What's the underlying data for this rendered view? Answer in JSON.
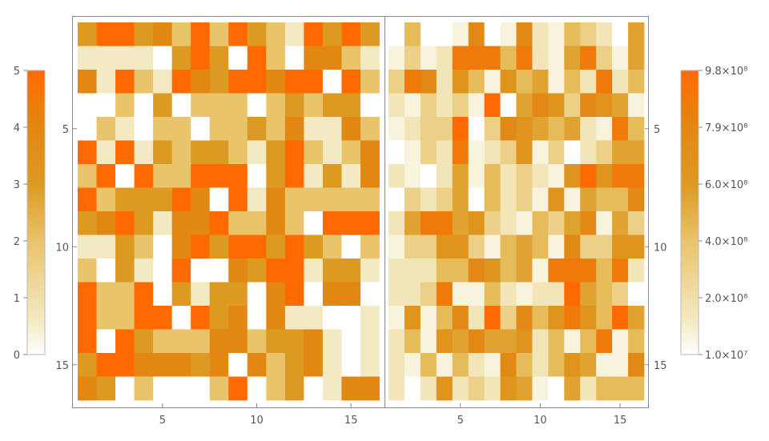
{
  "chart_data": {
    "type": "heatmap",
    "panels": [
      {
        "name": "left",
        "rows": 16,
        "cols": 16,
        "values": [
          [
            3,
            5,
            5,
            3,
            4,
            2,
            5,
            2,
            5,
            3,
            2,
            1,
            5,
            3,
            5,
            3
          ],
          [
            1,
            1,
            1,
            1,
            0,
            3,
            5,
            3,
            0,
            5,
            2,
            0,
            4,
            4,
            2,
            1
          ],
          [
            4,
            1,
            5,
            2,
            1,
            5,
            4,
            3,
            5,
            5,
            4,
            5,
            5,
            0,
            5,
            2
          ],
          [
            0,
            0,
            2,
            0,
            3,
            0,
            2,
            2,
            2,
            0,
            2,
            3,
            2,
            3,
            3,
            0
          ],
          [
            0,
            2,
            1,
            0,
            2,
            2,
            0,
            2,
            2,
            3,
            2,
            4,
            1,
            1,
            4,
            2
          ],
          [
            5,
            1,
            5,
            1,
            3,
            2,
            3,
            3,
            2,
            1,
            3,
            5,
            2,
            1,
            2,
            4
          ],
          [
            2,
            5,
            0,
            5,
            2,
            2,
            5,
            5,
            5,
            0,
            3,
            5,
            1,
            3,
            1,
            4
          ],
          [
            5,
            2,
            3,
            3,
            3,
            5,
            4,
            0,
            5,
            1,
            4,
            2,
            2,
            2,
            2,
            2
          ],
          [
            3,
            4,
            5,
            3,
            1,
            4,
            4,
            5,
            2,
            2,
            4,
            2,
            0,
            5,
            5,
            5
          ],
          [
            1,
            1,
            3,
            2,
            0,
            4,
            5,
            3,
            5,
            5,
            3,
            5,
            3,
            2,
            0,
            2
          ],
          [
            2,
            0,
            3,
            1,
            0,
            5,
            0,
            0,
            4,
            3,
            5,
            5,
            1,
            3,
            3,
            1
          ],
          [
            5,
            2,
            2,
            5,
            0,
            3,
            1,
            3,
            3,
            0,
            4,
            5,
            0,
            4,
            4,
            0
          ],
          [
            5,
            2,
            2,
            5,
            5,
            0,
            5,
            3,
            4,
            0,
            4,
            1,
            1,
            0,
            0,
            1
          ],
          [
            5,
            0,
            5,
            3,
            2,
            2,
            2,
            4,
            4,
            2,
            3,
            3,
            4,
            1,
            0,
            1
          ],
          [
            3,
            5,
            5,
            4,
            4,
            4,
            3,
            4,
            0,
            4,
            2,
            3,
            4,
            1,
            0,
            1
          ],
          [
            4,
            3,
            0,
            2,
            0,
            0,
            0,
            2,
            5,
            0,
            2,
            3,
            0,
            1,
            4,
            4
          ]
        ]
      },
      {
        "name": "right",
        "rows": 16,
        "cols": 16,
        "values": [
          [
            1,
            5,
            1,
            1,
            2,
            8,
            1,
            2,
            8,
            3,
            2,
            5,
            4,
            3,
            1,
            6
          ],
          [
            2,
            4,
            2,
            3,
            9,
            9,
            9,
            5,
            9,
            3,
            2,
            6,
            9,
            4,
            2,
            6
          ],
          [
            4,
            9,
            8,
            3,
            7,
            5,
            2,
            7,
            5,
            6,
            2,
            5,
            3,
            9,
            3,
            5
          ],
          [
            3,
            2,
            4,
            3,
            4,
            2,
            10,
            1,
            6,
            8,
            7,
            4,
            8,
            7,
            6,
            2
          ],
          [
            2,
            3,
            4,
            4,
            10,
            1,
            4,
            8,
            7,
            6,
            5,
            6,
            3,
            2,
            9,
            5
          ],
          [
            1,
            2,
            4,
            3,
            9,
            2,
            3,
            4,
            7,
            2,
            4,
            1,
            3,
            4,
            6,
            6
          ],
          [
            3,
            2,
            1,
            3,
            6,
            2,
            5,
            3,
            4,
            3,
            2,
            7,
            10,
            7,
            9,
            9
          ],
          [
            1,
            4,
            3,
            4,
            6,
            1,
            5,
            3,
            4,
            2,
            7,
            2,
            6,
            5,
            5,
            8
          ],
          [
            3,
            6,
            9,
            9,
            6,
            7,
            4,
            3,
            2,
            5,
            4,
            6,
            8,
            2,
            6,
            4
          ],
          [
            2,
            4,
            4,
            7,
            7,
            4,
            2,
            5,
            6,
            5,
            2,
            8,
            4,
            4,
            7,
            7
          ],
          [
            3,
            3,
            3,
            5,
            5,
            8,
            7,
            5,
            6,
            2,
            9,
            9,
            9,
            5,
            9,
            3
          ],
          [
            3,
            3,
            4,
            9,
            2,
            2,
            5,
            3,
            2,
            3,
            3,
            10,
            6,
            5,
            4,
            1
          ],
          [
            2,
            7,
            2,
            5,
            8,
            3,
            10,
            4,
            8,
            5,
            7,
            9,
            7,
            5,
            10,
            6
          ],
          [
            3,
            5,
            2,
            7,
            6,
            8,
            6,
            6,
            7,
            3,
            5,
            2,
            5,
            9,
            2,
            5
          ],
          [
            3,
            2,
            5,
            2,
            5,
            3,
            2,
            8,
            5,
            3,
            5,
            7,
            6,
            2,
            2,
            8
          ],
          [
            3,
            1,
            3,
            7,
            3,
            4,
            3,
            7,
            6,
            2,
            1,
            6,
            3,
            5,
            5,
            5
          ]
        ]
      }
    ],
    "x_ticks": [
      5,
      10,
      15
    ],
    "y_ticks": [
      5,
      10,
      15
    ],
    "left_legend": {
      "ticks": [
        "0",
        "1",
        "2",
        "3",
        "4",
        "5"
      ],
      "range": [
        0,
        5
      ]
    },
    "right_legend": {
      "ticks": [
        "1.0×10⁷",
        "2.0×10⁸",
        "4.0×10⁸",
        "6.0×10⁸",
        "7.9×10⁸",
        "9.8×10⁸"
      ],
      "range": [
        1,
        10
      ]
    },
    "grid": false,
    "colors": {
      "scale": [
        "#ffffff",
        "#f3e9c2",
        "#e9c46a",
        "#dd9a22",
        "#e28712",
        "#ff6a00"
      ],
      "frame": "#888888",
      "text": "#555555"
    }
  }
}
